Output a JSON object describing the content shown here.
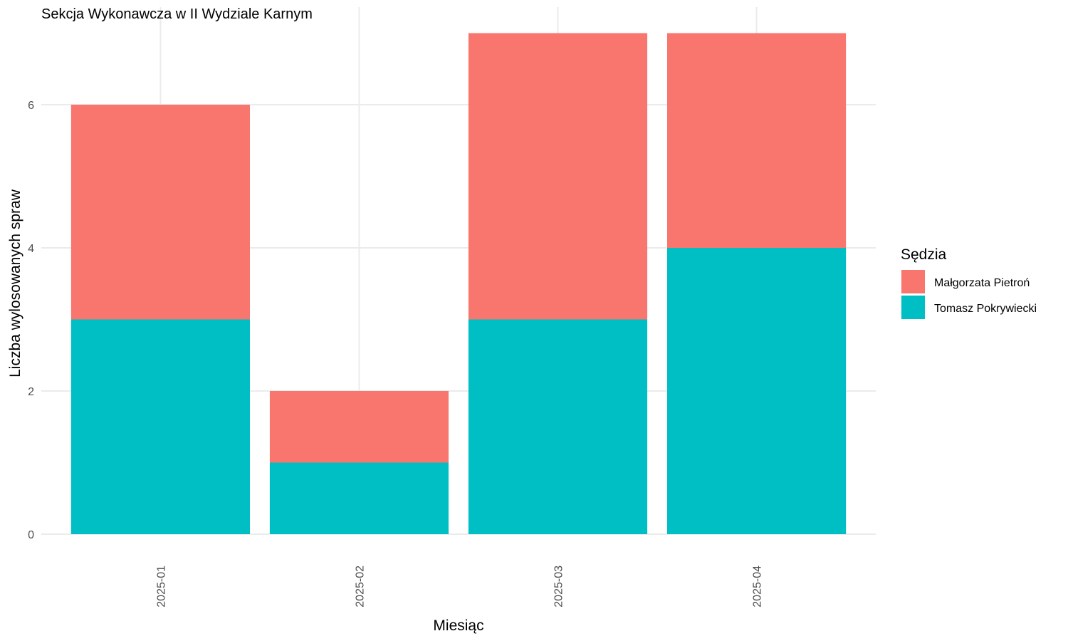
{
  "chart_data": {
    "type": "bar",
    "stacked": true,
    "title": "Sekcja Wykonawcza w II Wydziale Karnym",
    "xlabel": "Miesiąc",
    "ylabel": "Liczba wylosowanych spraw",
    "categories": [
      "2025-01",
      "2025-02",
      "2025-03",
      "2025-04"
    ],
    "series": [
      {
        "name": "Tomasz Pokrywiecki",
        "values": [
          3,
          1,
          3,
          4
        ],
        "color": "#00BFC4"
      },
      {
        "name": "Małgorzata Pietroń",
        "values": [
          3,
          1,
          4,
          3
        ],
        "color": "#F8766D"
      }
    ],
    "ylim": [
      0,
      7
    ],
    "yticks": [
      0,
      2,
      4,
      6
    ],
    "grid": true,
    "legend": {
      "title": "Sędzia",
      "placement": "right",
      "order": [
        "Małgorzata Pietroń",
        "Tomasz Pokrywiecki"
      ]
    }
  }
}
